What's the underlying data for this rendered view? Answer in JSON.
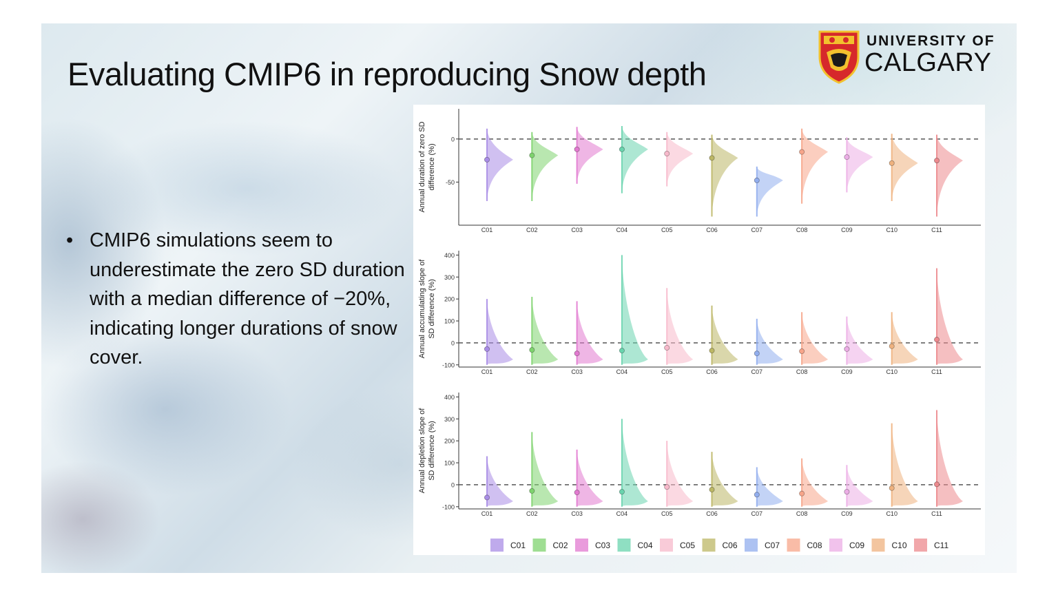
{
  "slide": {
    "title": "Evaluating CMIP6 in reproducing Snow depth",
    "logo": {
      "line1": "UNIVERSITY OF",
      "line2": "CALGARY"
    },
    "bullet": "CMIP6 simulations seem to underestimate the zero SD duration with a median difference of −20%, indicating longer durations of snow cover."
  },
  "chart_data": {
    "type": "violin",
    "categories": [
      "C01",
      "C02",
      "C03",
      "C04",
      "C05",
      "C06",
      "C07",
      "C08",
      "C09",
      "C10",
      "C11"
    ],
    "colors": [
      "#a98de6",
      "#7fd36f",
      "#e27ad0",
      "#6ad4ae",
      "#f7b9cb",
      "#bcb766",
      "#92aeee",
      "#f7a58a",
      "#ecaee6",
      "#efb27f",
      "#ec8a8e"
    ],
    "legend": [
      "C01",
      "C02",
      "C03",
      "C04",
      "C05",
      "C06",
      "C07",
      "C08",
      "C09",
      "C10",
      "C11"
    ],
    "panels": [
      {
        "ylabel": "Annual duration of zero SD difference (%)",
        "ylim": [
          -100,
          35
        ],
        "yticks": [
          0,
          -50
        ],
        "reference_line": 0,
        "medians": [
          -24,
          -19,
          -12,
          -12,
          -17,
          -22,
          -48,
          -15,
          -21,
          -28,
          -25
        ],
        "ranges": [
          [
            -72,
            12
          ],
          [
            -72,
            8
          ],
          [
            -52,
            14
          ],
          [
            -63,
            15
          ],
          [
            -55,
            8
          ],
          [
            -90,
            5
          ],
          [
            -90,
            -32
          ],
          [
            -75,
            12
          ],
          [
            -62,
            2
          ],
          [
            -72,
            6
          ],
          [
            -90,
            5
          ]
        ]
      },
      {
        "ylabel": "Annual accumulating slope of SD difference (%)",
        "ylim": [
          -110,
          420
        ],
        "yticks": [
          400,
          300,
          200,
          100,
          0,
          -100
        ],
        "reference_line": 0,
        "medians": [
          -28,
          -32,
          -48,
          -35,
          -22,
          -35,
          -48,
          -38,
          -28,
          -15,
          15
        ],
        "ranges": [
          [
            -100,
            200
          ],
          [
            -100,
            210
          ],
          [
            -100,
            190
          ],
          [
            -100,
            400
          ],
          [
            -100,
            250
          ],
          [
            -100,
            170
          ],
          [
            -100,
            110
          ],
          [
            -100,
            140
          ],
          [
            -100,
            120
          ],
          [
            -100,
            140
          ],
          [
            -100,
            340
          ]
        ]
      },
      {
        "ylabel": "Annual depletion slope of SD difference (%)",
        "ylim": [
          -110,
          420
        ],
        "yticks": [
          400,
          300,
          200,
          100,
          0,
          -100
        ],
        "reference_line": 0,
        "medians": [
          -58,
          -28,
          -35,
          -32,
          -10,
          -22,
          -45,
          -40,
          -32,
          -15,
          2
        ],
        "ranges": [
          [
            -100,
            130
          ],
          [
            -100,
            240
          ],
          [
            -100,
            160
          ],
          [
            -100,
            300
          ],
          [
            -100,
            200
          ],
          [
            -100,
            150
          ],
          [
            -100,
            80
          ],
          [
            -100,
            120
          ],
          [
            -100,
            90
          ],
          [
            -100,
            280
          ],
          [
            -100,
            340
          ]
        ]
      }
    ]
  }
}
